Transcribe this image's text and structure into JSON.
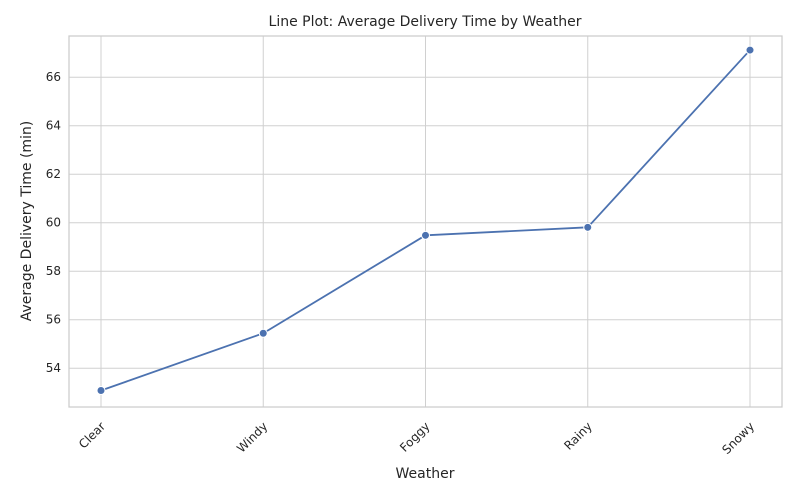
{
  "chart_data": {
    "type": "line",
    "title": "Line Plot: Average Delivery Time by Weather",
    "xlabel": "Weather",
    "ylabel": "Average Delivery Time (min)",
    "categories": [
      "Clear",
      "Windy",
      "Foggy",
      "Rainy",
      "Snowy"
    ],
    "values": [
      53.08,
      55.44,
      59.48,
      59.81,
      67.12
    ],
    "ylim": [
      52.4,
      67.7
    ],
    "yticks": [
      54,
      56,
      58,
      60,
      62,
      64,
      66
    ],
    "grid": true,
    "marker": "circle",
    "line_color": "#4c72b0"
  }
}
